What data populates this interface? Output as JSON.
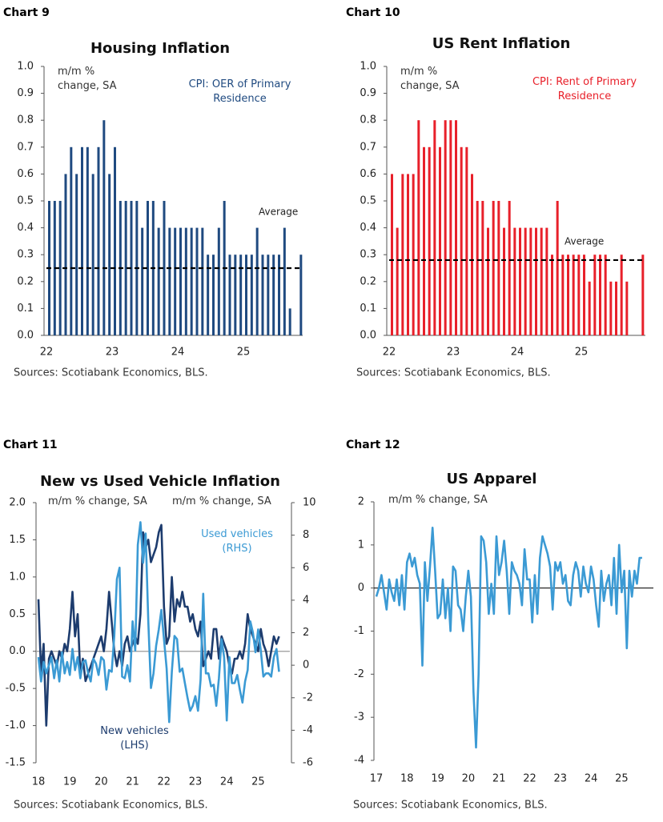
{
  "chart_data": [
    {
      "type": "bar",
      "label": "Chart 9",
      "title": "Housing Inflation",
      "unit_label": "m/m % change, SA",
      "source": "Sources: Scotiabank Economics, BLS.",
      "categories": [
        "22",
        null,
        null,
        null,
        null,
        null,
        null,
        null,
        null,
        null,
        null,
        null,
        "23",
        null,
        null,
        null,
        null,
        null,
        null,
        null,
        null,
        null,
        null,
        null,
        "24",
        null,
        null,
        null,
        null,
        null,
        null,
        null,
        null,
        null,
        null,
        null,
        "25",
        null,
        null,
        null,
        null,
        null,
        null,
        null,
        null,
        null,
        null
      ],
      "series": [
        {
          "name": "CPI: OER of Primary Residence",
          "color": "#1f4a80",
          "values": [
            0.5,
            0.5,
            0.5,
            0.6,
            0.7,
            0.6,
            0.7,
            0.7,
            0.6,
            0.7,
            0.8,
            0.6,
            0.7,
            0.5,
            0.5,
            0.5,
            0.5,
            0.4,
            0.5,
            0.5,
            0.4,
            0.5,
            0.4,
            0.4,
            0.4,
            0.4,
            0.4,
            0.4,
            0.4,
            0.3,
            0.3,
            0.4,
            0.5,
            0.3,
            0.3,
            0.3,
            0.3,
            0.3,
            0.4,
            0.3,
            0.3,
            0.3,
            0.3,
            0.4,
            0.1,
            null,
            0.3
          ]
        }
      ],
      "average": 0.25,
      "average_label": "Average",
      "ylim": [
        0,
        1
      ],
      "yticks": [
        {
          "value": 0,
          "label": "0.0"
        },
        0.1,
        0.2,
        0.3,
        0.4,
        0.5,
        0.6,
        0.7,
        0.8,
        0.9,
        {
          "value": 1,
          "label": "1.0"
        }
      ]
    },
    {
      "type": "bar",
      "label": "Chart 10",
      "title": "US Rent Inflation",
      "unit_label": "m/m % change, SA",
      "source": "Sources: Scotiabank Economics, BLS.",
      "categories": [
        "22",
        null,
        null,
        null,
        null,
        null,
        null,
        null,
        null,
        null,
        null,
        null,
        "23",
        null,
        null,
        null,
        null,
        null,
        null,
        null,
        null,
        null,
        null,
        null,
        "24",
        null,
        null,
        null,
        null,
        null,
        null,
        null,
        null,
        null,
        null,
        null,
        "25",
        null,
        null,
        null,
        null,
        null,
        null,
        null,
        null,
        null,
        null,
        null
      ],
      "series": [
        {
          "name": "CPI: Rent of Primary Residence",
          "color": "#e8202a",
          "values": [
            0.6,
            0.4,
            0.6,
            0.6,
            0.6,
            0.8,
            0.7,
            0.7,
            0.8,
            0.7,
            0.8,
            0.8,
            0.8,
            0.7,
            0.7,
            0.6,
            0.5,
            0.5,
            0.4,
            0.5,
            0.5,
            0.4,
            0.5,
            0.4,
            0.4,
            0.4,
            0.4,
            0.4,
            0.4,
            0.4,
            0.3,
            0.5,
            0.3,
            0.3,
            0.3,
            0.3,
            0.3,
            0.2,
            0.3,
            0.3,
            0.3,
            0.2,
            0.2,
            0.3,
            0.2,
            null,
            null,
            0.3
          ]
        }
      ],
      "average": 0.28,
      "average_label": "Average",
      "ylim": [
        0,
        1
      ],
      "yticks": [
        {
          "value": 0,
          "label": "0.0"
        },
        0.1,
        0.2,
        0.3,
        0.4,
        0.5,
        0.6,
        0.7,
        0.8,
        0.9,
        {
          "value": 1,
          "label": "1.0"
        }
      ]
    },
    {
      "type": "line",
      "label": "Chart 11",
      "title": "New vs Used Vehicle Inflation",
      "unit_label": "m/m % change, SA",
      "y2_unit_label": "m/m % change, SA",
      "source": "Sources: Scotiabank Economics, BLS.",
      "categories": [
        "18",
        null,
        null,
        null,
        null,
        null,
        null,
        null,
        null,
        null,
        null,
        null,
        "19",
        null,
        null,
        null,
        null,
        null,
        null,
        null,
        null,
        null,
        null,
        null,
        "20",
        null,
        null,
        null,
        null,
        null,
        null,
        null,
        null,
        null,
        null,
        null,
        "21",
        null,
        null,
        null,
        null,
        null,
        null,
        null,
        null,
        null,
        null,
        null,
        "22",
        null,
        null,
        null,
        null,
        null,
        null,
        null,
        null,
        null,
        null,
        null,
        "23",
        null,
        null,
        null,
        null,
        null,
        null,
        null,
        null,
        null,
        null,
        null,
        "24",
        null,
        null,
        null,
        null,
        null,
        null,
        null,
        null,
        null,
        null,
        null,
        "25",
        null,
        null,
        null,
        null,
        null,
        null,
        null,
        null,
        null,
        null
      ],
      "series": [
        {
          "name": "New vehicles (LHS)",
          "color": "#1d3c6e",
          "values": [
            0.7,
            -0.3,
            0.1,
            -1.0,
            -0.1,
            0.0,
            -0.1,
            -0.2,
            0.0,
            -0.1,
            0.1,
            0.0,
            0.3,
            0.8,
            0.2,
            0.5,
            -0.3,
            -0.1,
            -0.4,
            -0.3,
            -0.2,
            -0.1,
            0.0,
            0.1,
            0.2,
            0.0,
            0.3,
            0.8,
            0.4,
            0.0,
            -0.2,
            0.0,
            -0.2,
            0.1,
            0.2,
            0.0,
            0.1,
            0.2,
            0.1,
            0.5,
            1.6,
            1.4,
            1.5,
            1.2,
            1.3,
            1.4,
            1.6,
            1.7,
            0.6,
            0.1,
            0.2,
            1.0,
            0.4,
            0.7,
            0.6,
            0.8,
            0.6,
            0.6,
            0.4,
            0.5,
            0.3,
            0.2,
            0.4,
            -0.2,
            -0.1,
            0.0,
            -0.1,
            0.3,
            0.3,
            -0.1,
            0.2,
            0.1,
            0.0,
            -0.2,
            -0.3,
            -0.1,
            -0.1,
            0.0,
            -0.1,
            0.1,
            0.5,
            0.3,
            0.2,
            0.1,
            0.0,
            0.3,
            0.1,
            0.0,
            -0.2,
            0.0,
            0.2,
            0.1,
            0.2,
            null,
            0.0
          ]
        },
        {
          "name": "Used vehicles (RHS)",
          "color": "#3b9ad4",
          "axis": "y2",
          "values": [
            0.5,
            -1.0,
            0.2,
            -0.5,
            0.0,
            0.5,
            -0.8,
            0.3,
            -1.0,
            0.8,
            -0.5,
            0.2,
            -0.6,
            1.0,
            -0.3,
            0.5,
            -0.8,
            0.2,
            0.3,
            -0.5,
            -1.0,
            0.4,
            0.1,
            -0.6,
            0.5,
            0.3,
            -1.5,
            -0.3,
            -0.4,
            1.8,
            5.3,
            6.0,
            -0.7,
            -0.8,
            0.0,
            -1.0,
            2.7,
            0.9,
            7.4,
            8.8,
            6.3,
            8.1,
            2.7,
            -1.4,
            -0.5,
            1.2,
            2.2,
            3.4,
            1.6,
            -0.2,
            -3.5,
            -0.4,
            1.8,
            1.6,
            -0.4,
            -0.2,
            -1.1,
            -2.0,
            -2.8,
            -2.5,
            -1.9,
            -2.8,
            -0.9,
            4.4,
            -0.5,
            -0.5,
            -1.3,
            -1.2,
            -2.5,
            -0.8,
            1.6,
            0.5,
            -3.4,
            0.5,
            -1.1,
            -1.1,
            -0.6,
            -1.5,
            -2.3,
            -1.0,
            -0.3,
            2.7,
            2.0,
            0.8,
            2.2,
            0.9,
            -0.7,
            -0.5,
            -0.5,
            -0.7,
            0.5,
            1.0,
            -0.4,
            null,
            -1.2
          ]
        }
      ],
      "ylim": [
        -1.5,
        2
      ],
      "yticks": [
        {
          "value": 2,
          "label": "2.0"
        },
        1.5,
        {
          "value": 1,
          "label": "1.0"
        },
        0.5,
        {
          "value": 0,
          "label": "0.0"
        },
        -0.5,
        {
          "value": -1,
          "label": "-1.0"
        },
        -1.5
      ],
      "y2lim": [
        -6,
        10
      ],
      "y2ticks": [
        10,
        8,
        6,
        4,
        2,
        0,
        -2,
        -4,
        -6
      ]
    },
    {
      "type": "line",
      "label": "Chart 12",
      "title": "US Apparel",
      "unit_label": "m/m % change, SA",
      "source": "Sources: Scotiabank Economics, BLS.",
      "categories": [
        "17",
        null,
        null,
        null,
        null,
        null,
        null,
        null,
        null,
        null,
        null,
        null,
        "18",
        null,
        null,
        null,
        null,
        null,
        null,
        null,
        null,
        null,
        null,
        null,
        "19",
        null,
        null,
        null,
        null,
        null,
        null,
        null,
        null,
        null,
        null,
        null,
        "20",
        null,
        null,
        null,
        null,
        null,
        null,
        null,
        null,
        null,
        null,
        null,
        "21",
        null,
        null,
        null,
        null,
        null,
        null,
        null,
        null,
        null,
        null,
        null,
        "22",
        null,
        null,
        null,
        null,
        null,
        null,
        null,
        null,
        null,
        null,
        null,
        "23",
        null,
        null,
        null,
        null,
        null,
        null,
        null,
        null,
        null,
        null,
        null,
        "24",
        null,
        null,
        null,
        null,
        null,
        null,
        null,
        null,
        null,
        null,
        null,
        "25",
        null,
        null,
        null,
        null,
        null,
        null,
        null,
        null,
        null,
        null
      ],
      "color": "#3b9ad4",
      "values": [
        -0.2,
        0.0,
        0.3,
        -0.1,
        -0.5,
        0.2,
        -0.1,
        -0.3,
        0.2,
        -0.4,
        0.3,
        -0.5,
        0.6,
        0.8,
        0.5,
        0.7,
        0.3,
        0.1,
        -1.8,
        0.6,
        -0.3,
        0.5,
        1.4,
        0.4,
        -0.7,
        -0.6,
        0.2,
        -0.7,
        0.0,
        -1.0,
        0.5,
        0.4,
        -0.4,
        -0.5,
        -1.0,
        -0.2,
        0.4,
        -0.2,
        -2.4,
        -3.7,
        -2.0,
        1.2,
        1.1,
        0.6,
        -0.6,
        0.1,
        -0.6,
        1.2,
        0.3,
        0.6,
        1.1,
        0.4,
        -0.6,
        0.6,
        0.4,
        0.3,
        0.1,
        -0.4,
        0.9,
        0.2,
        0.2,
        -0.8,
        0.3,
        -0.6,
        0.7,
        1.2,
        1.0,
        0.8,
        0.5,
        -0.5,
        0.6,
        0.4,
        0.6,
        0.1,
        0.3,
        -0.3,
        -0.4,
        0.3,
        0.6,
        0.4,
        -0.2,
        0.5,
        0.1,
        -0.1,
        0.5,
        0.2,
        -0.4,
        -0.9,
        0.4,
        -0.3,
        0.1,
        0.3,
        -0.4,
        0.7,
        -0.6,
        1.0,
        -0.1,
        0.4,
        -1.4,
        0.4,
        -0.2,
        0.4,
        0.1,
        0.7,
        0.7,
        null,
        0.6
      ],
      "ylim": [
        -4,
        2
      ],
      "yticks": [
        2,
        1,
        0,
        -1,
        -2,
        -3,
        -4
      ]
    }
  ]
}
